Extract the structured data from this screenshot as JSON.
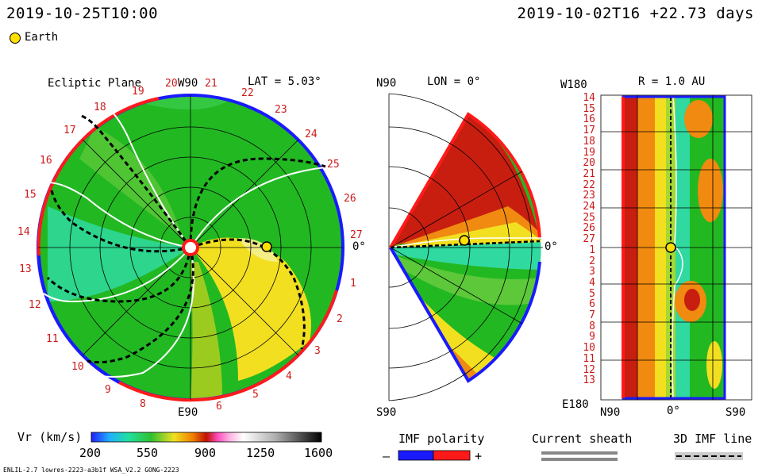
{
  "header": {
    "left_time": "2019-10-25T10:00",
    "right_time": "2019-10-02T16 +22.73 days"
  },
  "legend": {
    "earth_label": "Earth"
  },
  "ecliptic": {
    "title": "Ecliptic Plane",
    "lat": "LAT = 5.03°",
    "top_label": "W90",
    "bottom_label": "E90",
    "right_label": "0°",
    "ticks": [
      "19",
      "20",
      "21",
      "22",
      "23",
      "24",
      "25",
      "26",
      "27",
      "1",
      "2",
      "3",
      "4",
      "5",
      "6",
      "8",
      "9",
      "10",
      "11",
      "12",
      "13",
      "14",
      "15",
      "16",
      "17",
      "18"
    ]
  },
  "meridional": {
    "top_label": "N90",
    "lon": "LON = 0°",
    "bottom_label": "S90",
    "right_label": "0°"
  },
  "radial": {
    "title": "R = 1.0 AU",
    "top_left": "W180",
    "bottom_left": "E180",
    "bottom_labels": [
      "N90",
      "0°",
      "S90"
    ],
    "rows": [
      "14",
      "15",
      "16",
      "17",
      "18",
      "19",
      "20",
      "21",
      "22",
      "23",
      "24",
      "25",
      "26",
      "27",
      "1",
      "2",
      "3",
      "4",
      "5",
      "6",
      "7",
      "8",
      "9",
      "10",
      "11",
      "12",
      "13"
    ]
  },
  "colorbar": {
    "label": "Vr (km/s)",
    "ticks": [
      "200",
      "550",
      "900",
      "1250",
      "1600"
    ]
  },
  "imf": {
    "title": "IMF polarity",
    "minus": "–",
    "plus": "+"
  },
  "sheath": {
    "title": "Current sheath"
  },
  "imfline": {
    "title": "3D IMF line"
  },
  "footer": "ENLIL-2.7 lowres-2223-a3b1f WSA_V2.2 GONG-2223",
  "colors": {
    "ring_red": "#ff1a1a",
    "ring_blue": "#1a1aff",
    "green": "#22b822",
    "cyan": "#2fd9a0",
    "yellow": "#f2e020",
    "orange": "#f08a10",
    "darkred": "#c81e10",
    "earth": "#ffe000"
  }
}
